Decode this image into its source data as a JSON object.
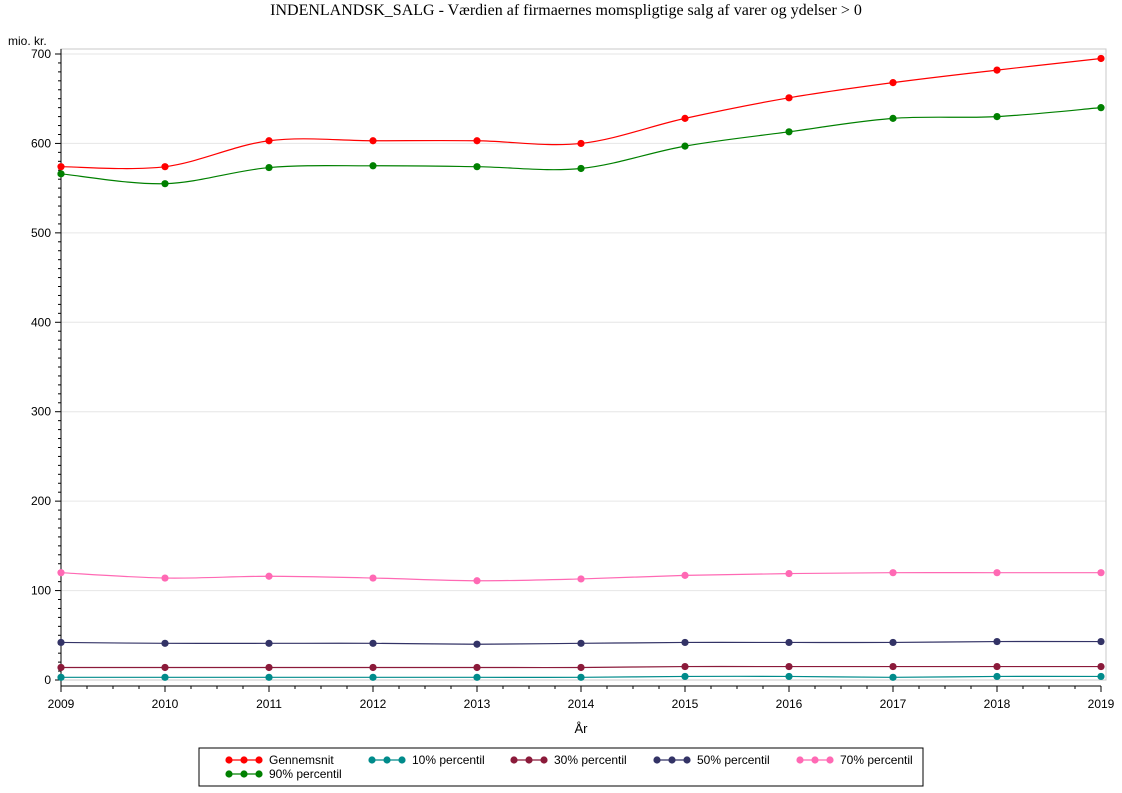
{
  "chart_data": {
    "type": "line",
    "title": "INDENLANDSK_SALG - Værdien af firmaernes momspligtige salg af varer og ydelser > 0",
    "xlabel": "År",
    "ylabel": "mio. kr.",
    "xlim": [
      2009,
      2019
    ],
    "ylim": [
      0,
      700
    ],
    "x": [
      2009,
      2010,
      2011,
      2012,
      2013,
      2014,
      2015,
      2016,
      2017,
      2018,
      2019
    ],
    "x_tick_labels": [
      "2009",
      "2010",
      "2011",
      "2012",
      "2013",
      "2014",
      "2015",
      "2016",
      "2017",
      "2018",
      "2019"
    ],
    "y_ticks": [
      0,
      100,
      200,
      300,
      400,
      500,
      600,
      700
    ],
    "y_tick_labels": [
      "0",
      "100",
      "200",
      "300",
      "400",
      "500",
      "600",
      "700"
    ],
    "grid": "horizontal",
    "legend_position": "bottom",
    "series": [
      {
        "name": "Gennemsnit",
        "color": "#ff0000",
        "values": [
          574,
          574,
          603,
          603,
          603,
          600,
          628,
          651,
          668,
          682,
          695
        ]
      },
      {
        "name": "10% percentil",
        "color": "#008b8b",
        "values": [
          3,
          3,
          3,
          3,
          3,
          3,
          4,
          4,
          3,
          4,
          4
        ]
      },
      {
        "name": "30% percentil",
        "color": "#8b1a3a",
        "values": [
          14,
          14,
          14,
          14,
          14,
          14,
          15,
          15,
          15,
          15,
          15
        ]
      },
      {
        "name": "50% percentil",
        "color": "#333366",
        "values": [
          42,
          41,
          41,
          41,
          40,
          41,
          42,
          42,
          42,
          43,
          43
        ]
      },
      {
        "name": "70% percentil",
        "color": "#ff69b4",
        "values": [
          120,
          114,
          116,
          114,
          111,
          113,
          117,
          119,
          120,
          120,
          120
        ]
      },
      {
        "name": "90% percentil",
        "color": "#008000",
        "values": [
          566,
          555,
          573,
          575,
          574,
          572,
          597,
          613,
          628,
          630,
          640
        ]
      }
    ]
  }
}
